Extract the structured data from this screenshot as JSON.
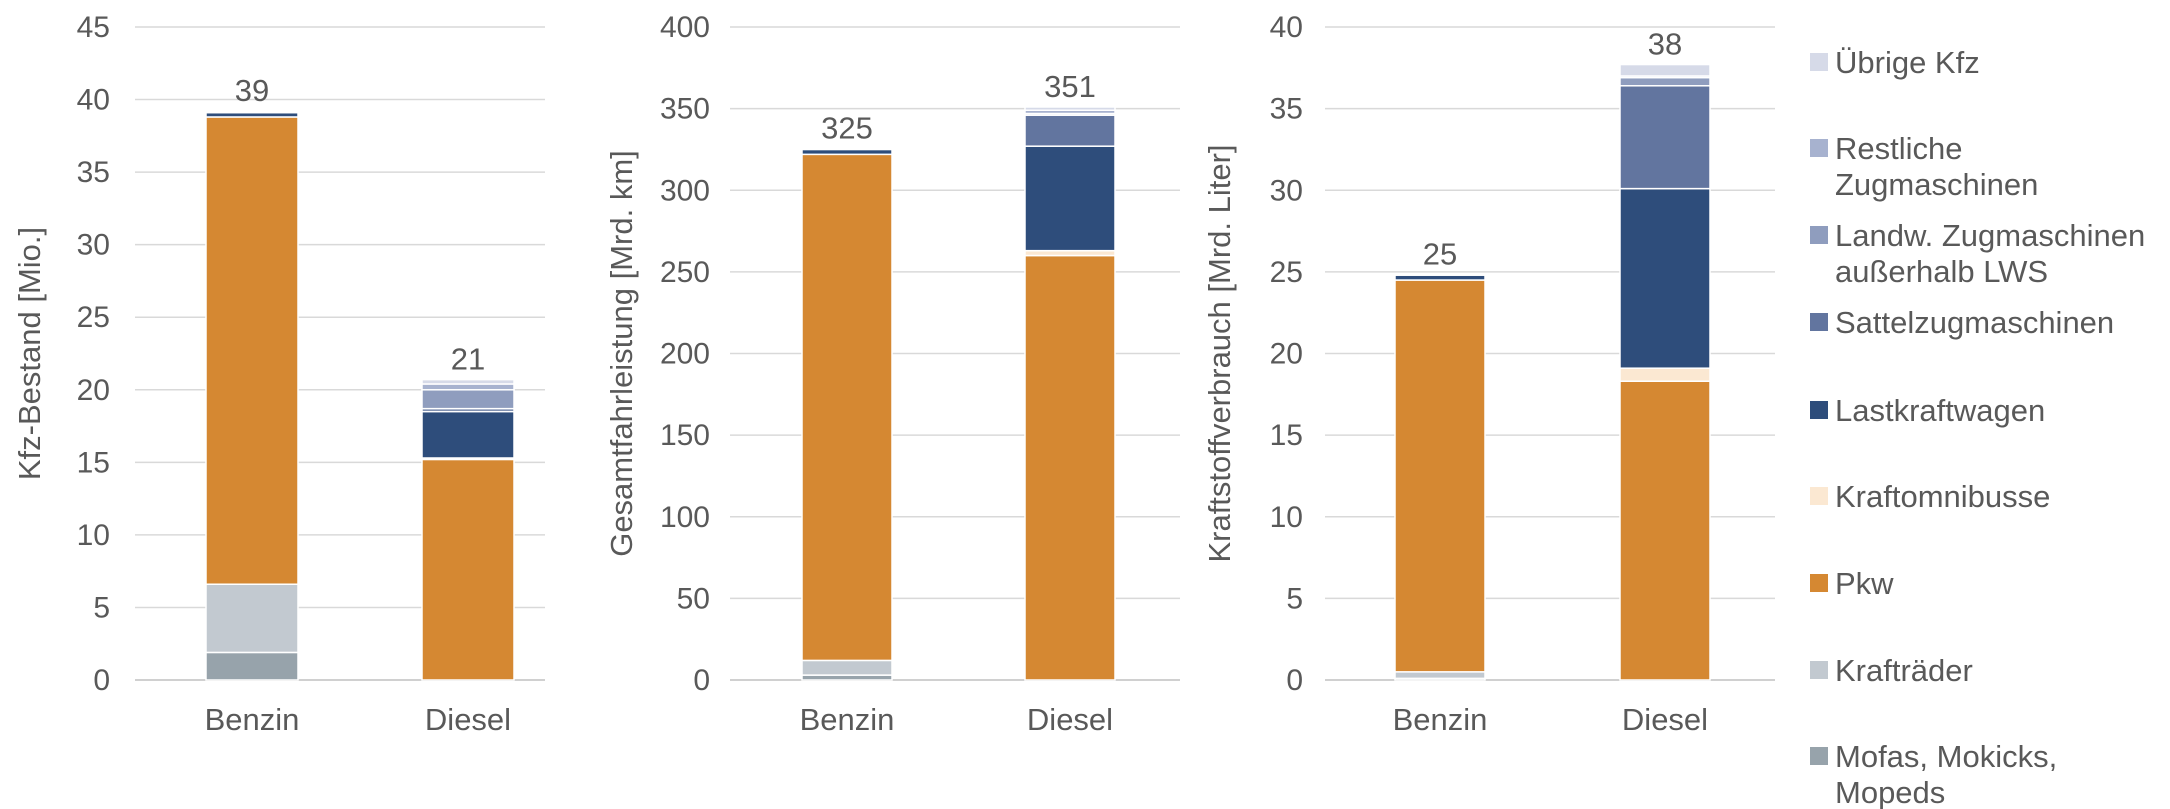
{
  "legend": [
    {
      "key": "uebrige",
      "label_lines": [
        "Übrige Kfz"
      ],
      "color": "#d6dae8"
    },
    {
      "key": "restliche",
      "label_lines": [
        "Restliche",
        "Zugmaschinen"
      ],
      "color": "#a7b2cf"
    },
    {
      "key": "landw",
      "label_lines": [
        "Landw. Zugmaschinen",
        "außerhalb LWS"
      ],
      "color": "#8f9dbe"
    },
    {
      "key": "sattel",
      "label_lines": [
        "Sattelzugmaschinen"
      ],
      "color": "#62759f"
    },
    {
      "key": "lkw",
      "label_lines": [
        "Lastkraftwagen"
      ],
      "color": "#2e4d7b"
    },
    {
      "key": "bus",
      "label_lines": [
        "Kraftomnibusse"
      ],
      "color": "#fbe8d2"
    },
    {
      "key": "pkw",
      "label_lines": [
        "Pkw"
      ],
      "color": "#d58832"
    },
    {
      "key": "kraftraeder",
      "label_lines": [
        "Krafträder"
      ],
      "color": "#c2c9d0"
    },
    {
      "key": "mofas",
      "label_lines": [
        "Mofas, Mokicks,",
        "Mopeds"
      ],
      "color": "#97a3ab"
    }
  ],
  "chart_data": [
    {
      "type": "bar",
      "stacked": true,
      "categories": [
        "Benzin",
        "Diesel"
      ],
      "ylabel": "Kfz-Bestand [Mio.]",
      "ylim": [
        0,
        45
      ],
      "yticks": [
        0,
        5,
        10,
        15,
        20,
        25,
        30,
        35,
        40,
        45
      ],
      "totals": [
        "39",
        "21"
      ],
      "grid": true,
      "series": [
        {
          "key": "mofas",
          "values": [
            1.9,
            0
          ]
        },
        {
          "key": "kraftraeder",
          "values": [
            4.7,
            0
          ]
        },
        {
          "key": "pkw",
          "values": [
            32.2,
            15.2
          ]
        },
        {
          "key": "bus",
          "values": [
            0,
            0.1
          ]
        },
        {
          "key": "lkw",
          "values": [
            0.3,
            3.2
          ]
        },
        {
          "key": "sattel",
          "values": [
            0,
            0.2
          ]
        },
        {
          "key": "landw",
          "values": [
            0,
            1.3
          ]
        },
        {
          "key": "restliche",
          "values": [
            0,
            0.4
          ]
        },
        {
          "key": "uebrige",
          "values": [
            0.1,
            0.3
          ]
        }
      ]
    },
    {
      "type": "bar",
      "stacked": true,
      "categories": [
        "Benzin",
        "Diesel"
      ],
      "ylabel": "Gesamtfahrleistung [Mrd. km]",
      "ylim": [
        0,
        400
      ],
      "yticks": [
        0,
        50,
        100,
        150,
        200,
        250,
        300,
        350,
        400
      ],
      "totals": [
        "325",
        "351"
      ],
      "grid": true,
      "series": [
        {
          "key": "mofas",
          "values": [
            3,
            0
          ]
        },
        {
          "key": "kraftraeder",
          "values": [
            9,
            0
          ]
        },
        {
          "key": "pkw",
          "values": [
            310,
            260
          ]
        },
        {
          "key": "bus",
          "values": [
            0,
            3
          ]
        },
        {
          "key": "lkw",
          "values": [
            3,
            64
          ]
        },
        {
          "key": "sattel",
          "values": [
            0,
            19
          ]
        },
        {
          "key": "landw",
          "values": [
            0,
            1
          ]
        },
        {
          "key": "restliche",
          "values": [
            0,
            2
          ]
        },
        {
          "key": "uebrige",
          "values": [
            0.5,
            2
          ]
        }
      ]
    },
    {
      "type": "bar",
      "stacked": true,
      "categories": [
        "Benzin",
        "Diesel"
      ],
      "ylabel": "Kraftstoffverbrauch [Mrd. Liter]",
      "ylim": [
        0,
        40
      ],
      "yticks": [
        0,
        5,
        10,
        15,
        20,
        25,
        30,
        35,
        40
      ],
      "totals": [
        "25",
        "38"
      ],
      "grid": true,
      "series": [
        {
          "key": "mofas",
          "values": [
            0.1,
            0
          ]
        },
        {
          "key": "kraftraeder",
          "values": [
            0.4,
            0
          ]
        },
        {
          "key": "pkw",
          "values": [
            24.0,
            18.3
          ]
        },
        {
          "key": "bus",
          "values": [
            0,
            0.8
          ]
        },
        {
          "key": "lkw",
          "values": [
            0.3,
            11.0
          ]
        },
        {
          "key": "sattel",
          "values": [
            0,
            6.3
          ]
        },
        {
          "key": "landw",
          "values": [
            0,
            0.5
          ]
        },
        {
          "key": "restliche",
          "values": [
            0,
            0.1
          ]
        },
        {
          "key": "uebrige",
          "values": [
            0.05,
            0.7
          ]
        }
      ]
    }
  ]
}
